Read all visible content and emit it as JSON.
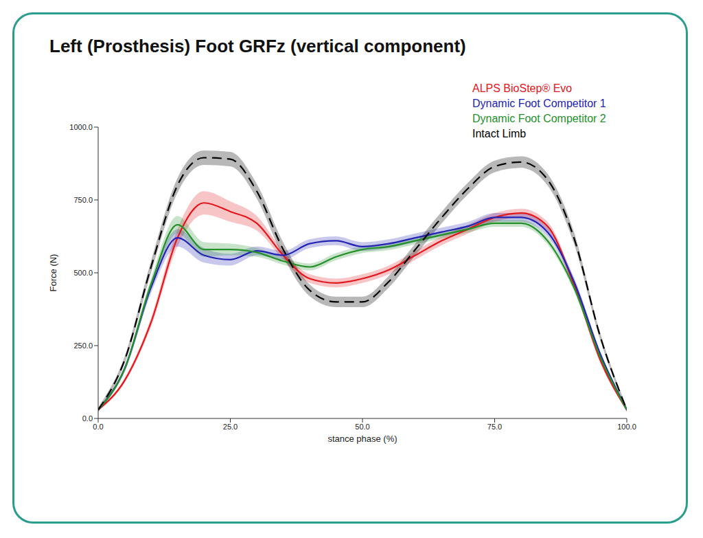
{
  "chart_data": {
    "type": "line",
    "title": "Left (Prosthesis) Foot GRFz (vertical component)",
    "x_label": "stance phase (%)",
    "y_label": "Force (N)",
    "x": [
      0,
      5,
      10,
      15,
      20,
      25,
      30,
      35,
      40,
      45,
      50,
      55,
      60,
      65,
      70,
      75,
      80,
      85,
      90,
      95,
      100
    ],
    "xlim": [
      0,
      100
    ],
    "xticks": [
      {
        "value": 0,
        "label": "0.0"
      },
      {
        "value": 25,
        "label": "25.0"
      },
      {
        "value": 50,
        "label": "50.0"
      },
      {
        "value": 75,
        "label": "75.0"
      },
      {
        "value": 100,
        "label": "100.0"
      }
    ],
    "ylim": [
      0,
      1000
    ],
    "yticks": [
      {
        "value": 0,
        "label": "0.0"
      },
      {
        "value": 250,
        "label": "250.0"
      },
      {
        "value": 500,
        "label": "500.0"
      },
      {
        "value": 750,
        "label": "750.0"
      },
      {
        "value": 1000,
        "label": "1000.0"
      }
    ],
    "grid": false,
    "legend": "top-right",
    "series": [
      {
        "name": "ALPS BioStep® Evo",
        "color": "#e3161c",
        "line_style": "solid",
        "values": [
          30,
          130,
          330,
          620,
          740,
          710,
          670,
          560,
          480,
          465,
          480,
          510,
          560,
          610,
          650,
          690,
          705,
          660,
          460,
          200,
          30
        ],
        "error": [
          5,
          8,
          15,
          30,
          40,
          35,
          25,
          15,
          15,
          15,
          15,
          15,
          15,
          15,
          15,
          15,
          15,
          15,
          15,
          10,
          5
        ]
      },
      {
        "name": "Dynamic Foot Competitor 1",
        "color": "#2323b4",
        "line_style": "solid",
        "values": [
          30,
          170,
          450,
          620,
          560,
          545,
          575,
          560,
          600,
          610,
          590,
          600,
          620,
          640,
          660,
          690,
          690,
          640,
          470,
          220,
          30
        ],
        "error": [
          5,
          10,
          20,
          30,
          25,
          20,
          15,
          15,
          15,
          15,
          15,
          15,
          15,
          15,
          15,
          15,
          15,
          15,
          15,
          10,
          5
        ]
      },
      {
        "name": "Dynamic Foot Competitor 2",
        "color": "#24902a",
        "line_style": "solid",
        "values": [
          30,
          170,
          460,
          665,
          580,
          580,
          570,
          540,
          520,
          555,
          580,
          590,
          610,
          630,
          650,
          670,
          670,
          610,
          450,
          210,
          30
        ],
        "error": [
          5,
          10,
          20,
          30,
          25,
          20,
          15,
          12,
          12,
          12,
          12,
          12,
          12,
          12,
          12,
          12,
          12,
          12,
          12,
          10,
          5
        ]
      },
      {
        "name": "Intact Limb",
        "color": "#000000",
        "line_style": "dashed",
        "values": [
          30,
          200,
          520,
          800,
          895,
          890,
          780,
          580,
          440,
          400,
          400,
          470,
          580,
          690,
          790,
          865,
          880,
          820,
          620,
          280,
          30
        ],
        "error": [
          8,
          12,
          20,
          25,
          25,
          25,
          25,
          25,
          20,
          18,
          18,
          20,
          20,
          20,
          20,
          20,
          20,
          20,
          20,
          12,
          8
        ]
      }
    ]
  }
}
